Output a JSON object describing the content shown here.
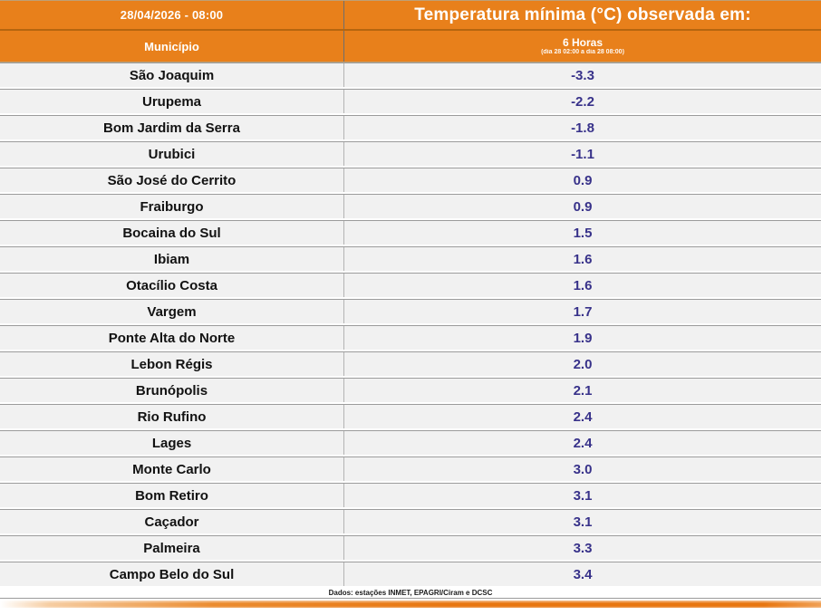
{
  "header": {
    "datetime": "28/04/2026 - 08:00",
    "title": "Temperatura mínima (°C) observada em:",
    "col_municipality": "Município",
    "col_period": "6 Horas",
    "col_period_detail": "(dia 28 02:00 a dia 28 08:00)"
  },
  "table": {
    "rows": [
      {
        "municipality": "São Joaquim",
        "value": "-3.3"
      },
      {
        "municipality": "Urupema",
        "value": "-2.2"
      },
      {
        "municipality": "Bom Jardim da Serra",
        "value": "-1.8"
      },
      {
        "municipality": "Urubici",
        "value": "-1.1"
      },
      {
        "municipality": "São José do Cerrito",
        "value": "0.9"
      },
      {
        "municipality": "Fraiburgo",
        "value": "0.9"
      },
      {
        "municipality": "Bocaina do Sul",
        "value": "1.5"
      },
      {
        "municipality": "Ibiam",
        "value": "1.6"
      },
      {
        "municipality": "Otacílio Costa",
        "value": "1.6"
      },
      {
        "municipality": "Vargem",
        "value": "1.7"
      },
      {
        "municipality": "Ponte Alta do Norte",
        "value": "1.9"
      },
      {
        "municipality": "Lebon Régis",
        "value": "2.0"
      },
      {
        "municipality": "Brunópolis",
        "value": "2.1"
      },
      {
        "municipality": "Rio Rufino",
        "value": "2.4"
      },
      {
        "municipality": "Lages",
        "value": "2.4"
      },
      {
        "municipality": "Monte Carlo",
        "value": "3.0"
      },
      {
        "municipality": "Bom Retiro",
        "value": "3.1"
      },
      {
        "municipality": "Caçador",
        "value": "3.1"
      },
      {
        "municipality": "Palmeira",
        "value": "3.3"
      },
      {
        "municipality": "Campo Belo do Sul",
        "value": "3.4"
      }
    ]
  },
  "footer": {
    "source": "Dados: estações INMET, EPAGRI/Ciram e DCSC"
  },
  "colors": {
    "header_orange": "#e8801b",
    "header_separator": "#b5650f",
    "row_background": "#f1f1f1",
    "row_border": "#9b9b9b",
    "value_text": "#38328a",
    "accent_bar_orange": "#e87610"
  },
  "chart_data": {
    "type": "table",
    "title": "Temperatura mínima (°C) observada em:",
    "datetime": "28/04/2026 - 08:00",
    "columns": [
      "Município",
      "6 Horas (dia 28 02:00 a dia 28 08:00)"
    ],
    "rows": [
      [
        "São Joaquim",
        -3.3
      ],
      [
        "Urupema",
        -2.2
      ],
      [
        "Bom Jardim da Serra",
        -1.8
      ],
      [
        "Urubici",
        -1.1
      ],
      [
        "São José do Cerrito",
        0.9
      ],
      [
        "Fraiburgo",
        0.9
      ],
      [
        "Bocaina do Sul",
        1.5
      ],
      [
        "Ibiam",
        1.6
      ],
      [
        "Otacílio Costa",
        1.6
      ],
      [
        "Vargem",
        1.7
      ],
      [
        "Ponte Alta do Norte",
        1.9
      ],
      [
        "Lebon Régis",
        2.0
      ],
      [
        "Brunópolis",
        2.1
      ],
      [
        "Rio Rufino",
        2.4
      ],
      [
        "Lages",
        2.4
      ],
      [
        "Monte Carlo",
        3.0
      ],
      [
        "Bom Retiro",
        3.1
      ],
      [
        "Caçador",
        3.1
      ],
      [
        "Palmeira",
        3.3
      ],
      [
        "Campo Belo do Sul",
        3.4
      ]
    ],
    "source": "Dados: estações INMET, EPAGRI/Ciram e DCSC"
  }
}
